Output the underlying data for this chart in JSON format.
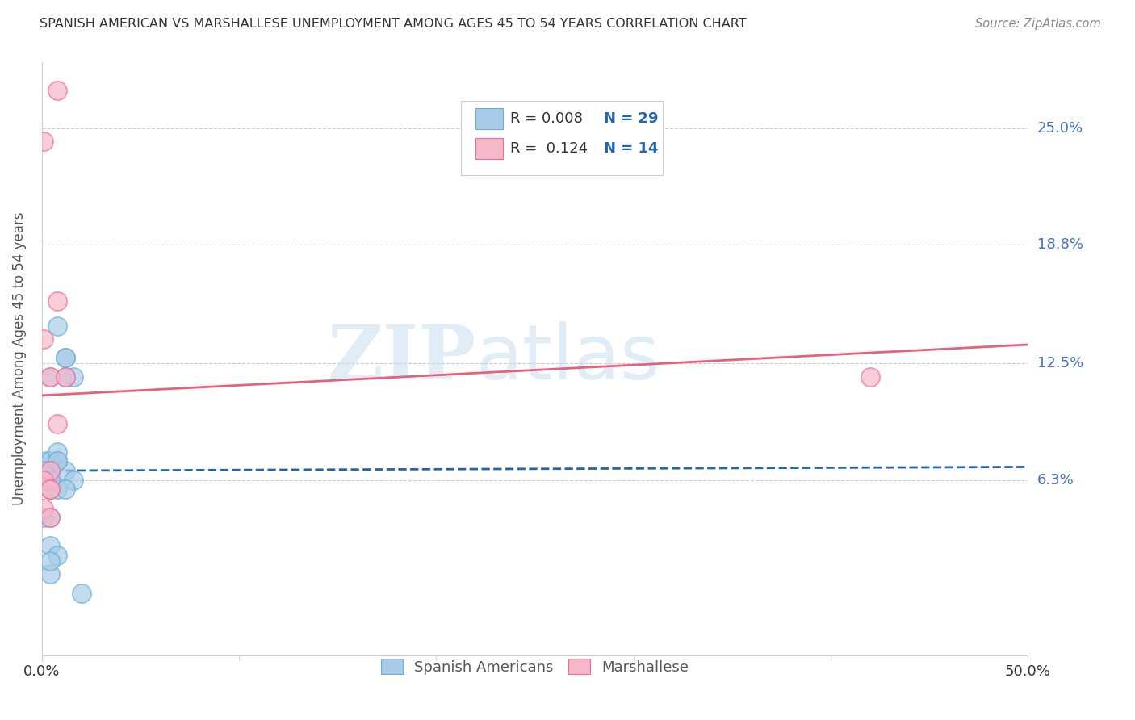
{
  "title": "SPANISH AMERICAN VS MARSHALLESE UNEMPLOYMENT AMONG AGES 45 TO 54 YEARS CORRELATION CHART",
  "source": "Source: ZipAtlas.com",
  "ylabel": "Unemployment Among Ages 45 to 54 years",
  "xlim": [
    0.0,
    0.5
  ],
  "ylim": [
    -0.03,
    0.285
  ],
  "yticks": [
    0.063,
    0.125,
    0.188,
    0.25
  ],
  "ytick_labels": [
    "6.3%",
    "12.5%",
    "18.8%",
    "25.0%"
  ],
  "watermark_zip": "ZIP",
  "watermark_atlas": "atlas",
  "legend_r1": "R = 0.008",
  "legend_n1": "N = 29",
  "legend_r2": "R =  0.124",
  "legend_n2": "N = 14",
  "blue_color": "#a8cce8",
  "pink_color": "#f4b8c8",
  "blue_edge_color": "#6baed6",
  "pink_edge_color": "#f768a1",
  "blue_line_color": "#2166ac",
  "pink_line_color": "#e8607a",
  "blue_scatter_x": [
    0.0,
    0.008,
    0.012,
    0.016,
    0.004,
    0.008,
    0.002,
    0.004,
    0.001,
    0.004,
    0.008,
    0.016,
    0.012,
    0.004,
    0.012,
    0.004,
    0.008,
    0.001,
    0.004,
    0.004,
    0.008,
    0.012,
    0.02,
    0.004,
    0.001,
    0.004,
    0.012,
    0.008,
    0.004
  ],
  "blue_scatter_y": [
    0.07,
    0.145,
    0.068,
    0.118,
    0.118,
    0.073,
    0.073,
    0.068,
    0.063,
    0.058,
    0.058,
    0.063,
    0.128,
    0.073,
    0.128,
    0.068,
    0.078,
    0.043,
    0.043,
    0.028,
    0.023,
    0.118,
    0.003,
    0.013,
    0.068,
    0.063,
    0.058,
    0.073,
    0.02
  ],
  "pink_scatter_x": [
    0.008,
    0.001,
    0.001,
    0.004,
    0.008,
    0.004,
    0.001,
    0.004,
    0.012,
    0.004,
    0.001,
    0.004,
    0.42,
    0.008
  ],
  "pink_scatter_y": [
    0.158,
    0.243,
    0.138,
    0.118,
    0.093,
    0.068,
    0.063,
    0.058,
    0.118,
    0.058,
    0.048,
    0.043,
    0.118,
    0.27
  ],
  "blue_trend_x": [
    0.0,
    0.5
  ],
  "blue_trend_y": [
    0.068,
    0.07
  ],
  "pink_trend_x": [
    0.0,
    0.5
  ],
  "pink_trend_y": [
    0.108,
    0.135
  ],
  "grid_color": "#cccccc",
  "background_color": "#ffffff"
}
